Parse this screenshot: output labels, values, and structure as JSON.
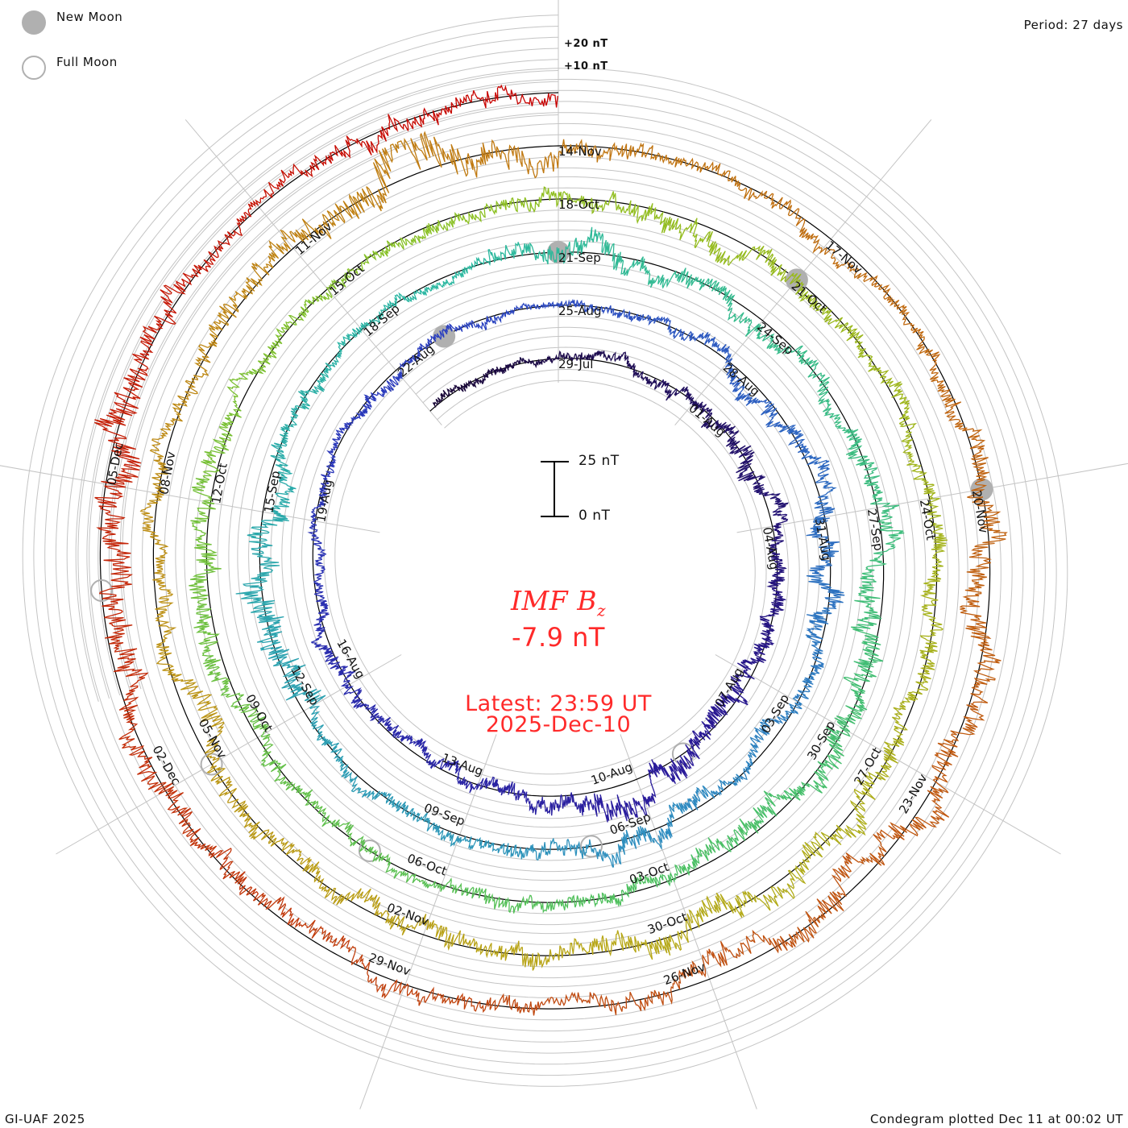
{
  "chart_data": {
    "type": "line",
    "subtype": "condegram-spiral",
    "title": "IMF Bz",
    "current_value": "-7.9 nT",
    "latest_label": "Latest: 23:59 UT",
    "latest_date": "2025-Dec-10",
    "period_label": "Period: 27 days",
    "period_days": 27,
    "scale_bar": {
      "top_label": "25 nT",
      "bottom_label": "0 nT",
      "value_nT": 25
    },
    "grid_labels": [
      "+20 nT",
      "+10 nT"
    ],
    "grid_step_nT": 5,
    "start_day_index": -2.85,
    "end_day_index": 135,
    "day_index_origin": "29-Jul",
    "daily_amplitude_nT": [
      3,
      3,
      2,
      3,
      3,
      4,
      5,
      6,
      5,
      4,
      5,
      6,
      7,
      6,
      8,
      9,
      6,
      5,
      4,
      4,
      4,
      5,
      4,
      3,
      3,
      3,
      4,
      3,
      3,
      2,
      3,
      3,
      4,
      5,
      6,
      6,
      7,
      8,
      5,
      5,
      4,
      6,
      7,
      6,
      5,
      5,
      4,
      4,
      9,
      10,
      8,
      6,
      4,
      3,
      3,
      3,
      6,
      8,
      7,
      6,
      5,
      5,
      6,
      7,
      9,
      8,
      8,
      7,
      6,
      5,
      5,
      5,
      4,
      4,
      5,
      6,
      7,
      8,
      6,
      5,
      4,
      4,
      4,
      5,
      6,
      7,
      6,
      6,
      5,
      5,
      6,
      6,
      6,
      7,
      8,
      8,
      8,
      7,
      6,
      6,
      6,
      7,
      8,
      6,
      5,
      5,
      6,
      8,
      10,
      14,
      9,
      6,
      4,
      5,
      4,
      4,
      6,
      8,
      9,
      8,
      9,
      10,
      8,
      6,
      5,
      5,
      6,
      6,
      7,
      8,
      9,
      11,
      12,
      8,
      5,
      5,
      6,
      5
    ],
    "date_labels": [
      "29-Jul",
      "01-Aug",
      "04-Aug",
      "07-Aug",
      "10-Aug",
      "13-Aug",
      "16-Aug",
      "19-Aug",
      "22-Aug",
      "25-Aug",
      "28-Aug",
      "31-Aug",
      "03-Sep",
      "06-Sep",
      "09-Sep",
      "12-Sep",
      "15-Sep",
      "18-Sep",
      "21-Sep",
      "24-Sep",
      "27-Sep",
      "30-Sep",
      "03-Oct",
      "06-Oct",
      "09-Oct",
      "12-Oct",
      "15-Oct",
      "18-Oct",
      "21-Oct",
      "24-Oct",
      "27-Oct",
      "30-Oct",
      "02-Nov",
      "05-Nov",
      "08-Nov",
      "11-Nov",
      "14-Nov",
      "17-Nov",
      "20-Nov",
      "23-Nov",
      "26-Nov",
      "29-Nov",
      "02-Dec",
      "05-Dec"
    ],
    "date_label_step_days": 3,
    "new_moon_day_index": [
      25,
      54,
      84,
      114
    ],
    "full_moon_day_index": [
      11,
      40,
      70,
      99,
      128
    ],
    "color_stops": [
      "#1a0838",
      "#2a1a9a",
      "#2a3ec0",
      "#2e8cc0",
      "#2ab8a0",
      "#4cc060",
      "#8cc020",
      "#b8a818",
      "#c07810",
      "#c04a10",
      "#c80000"
    ]
  },
  "legend": {
    "new_moon": "New Moon",
    "full_moon": "Full Moon",
    "moon_fill": "#b0b0b0"
  },
  "footer": {
    "left": "GI-UAF 2025",
    "right": "Condegram plotted Dec 11 at 00:02 UT"
  },
  "accent": "#ff2a2a"
}
